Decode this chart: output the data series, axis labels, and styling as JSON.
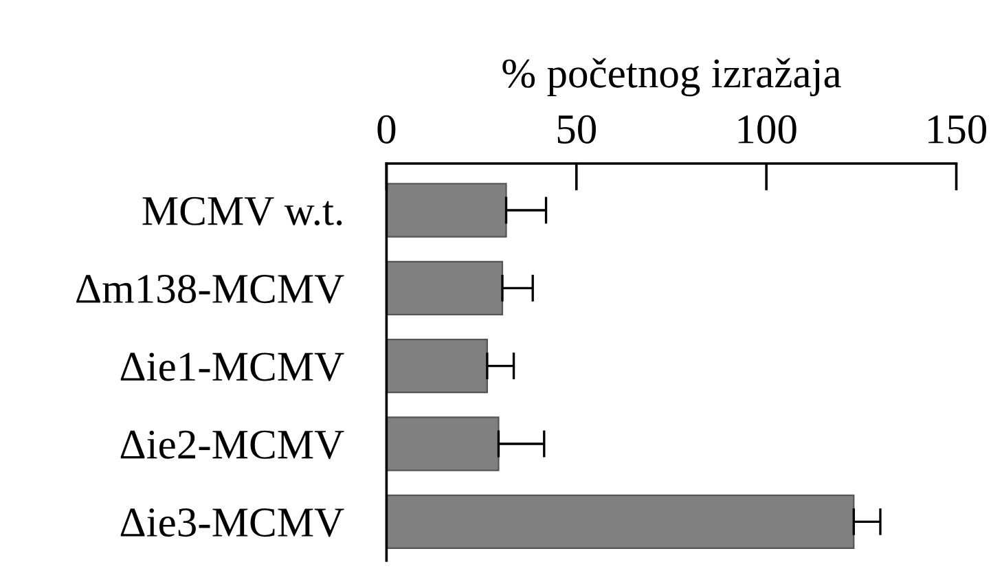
{
  "chart_data": {
    "type": "bar",
    "orientation": "horizontal",
    "xlabel": "% početnog izražaja",
    "categories": [
      "MCMV w.t.",
      "Δm138-MCMV",
      "Δie1-MCMV",
      "Δie2-MCMV",
      "Δie3-MCMV"
    ],
    "values": [
      31.5,
      30.5,
      26.5,
      29.5,
      123
    ],
    "errors": [
      [
        31.5,
        42
      ],
      [
        30.5,
        38.5
      ],
      [
        26.5,
        33.5
      ],
      [
        29.5,
        41.5
      ],
      [
        123,
        130
      ]
    ],
    "color": "#808080",
    "xlim": [
      0,
      150
    ],
    "xticks": [
      0,
      50,
      100,
      150
    ],
    "grid": false
  }
}
